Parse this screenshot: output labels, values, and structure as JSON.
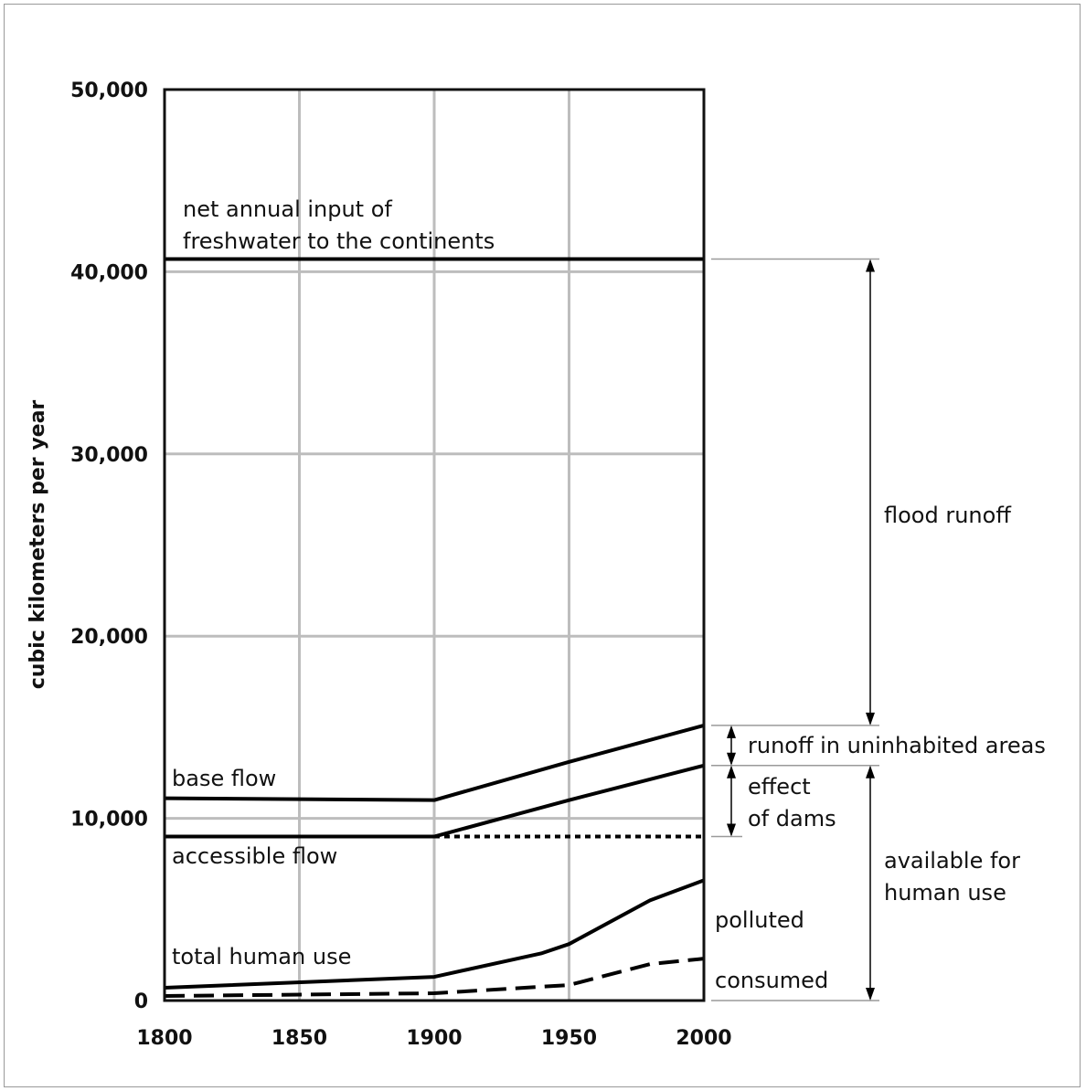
{
  "chart_data": {
    "type": "line",
    "title": "",
    "xlabel": "",
    "ylabel": "cubic kilometers per year",
    "xlim": [
      1800,
      2000
    ],
    "ylim": [
      0,
      50000
    ],
    "x_ticks": [
      "1800",
      "1850",
      "1900",
      "1950",
      "2000"
    ],
    "y_ticks": [
      "0",
      "10,000",
      "20,000",
      "30,000",
      "40,000",
      "50,000"
    ],
    "grid": true,
    "series": [
      {
        "name": "net annual input of freshwater to the continents",
        "style": "solid",
        "x": [
          1800,
          2000
        ],
        "y": [
          40700,
          40700
        ]
      },
      {
        "name": "base flow",
        "style": "solid",
        "x": [
          1800,
          1900,
          1950,
          2000
        ],
        "y": [
          11100,
          11000,
          13100,
          15100
        ]
      },
      {
        "name": "accessible flow",
        "style": "solid",
        "x": [
          1800,
          1900,
          1950,
          2000
        ],
        "y": [
          9000,
          9000,
          11000,
          12900
        ]
      },
      {
        "name": "",
        "style": "dotted",
        "x": [
          1900,
          2000
        ],
        "y": [
          9000,
          9000
        ]
      },
      {
        "name": "total human use",
        "style": "solid",
        "x": [
          1800,
          1900,
          1940,
          1950,
          1980,
          2000
        ],
        "y": [
          700,
          1300,
          2600,
          3100,
          5500,
          6600
        ]
      },
      {
        "name": "",
        "style": "dashed",
        "x": [
          1800,
          1900,
          1950,
          1980,
          2000
        ],
        "y": [
          250,
          400,
          850,
          2000,
          2300
        ]
      }
    ],
    "annotations": {
      "net_input_line1": "net annual input of",
      "net_input_line2": "freshwater to the continents",
      "base_flow": "base flow",
      "accessible_flow": "accessible flow",
      "total_human_use": "total human use",
      "polluted": "polluted",
      "consumed": "consumed",
      "flood_runoff": "flood runoff",
      "runoff_uninhabited": "runoff in uninhabited areas",
      "effect_line1": "effect",
      "effect_line2": "of dams",
      "available_line1": "available for",
      "available_line2": "human use"
    },
    "brackets": [
      {
        "label": "flood runoff",
        "from": 15100,
        "to": 40700
      },
      {
        "label": "runoff in uninhabited areas",
        "from": 12900,
        "to": 15100
      },
      {
        "label": "effect of dams",
        "from": 9000,
        "to": 12900
      },
      {
        "label": "available for human use",
        "from": 0,
        "to": 12900
      }
    ]
  }
}
